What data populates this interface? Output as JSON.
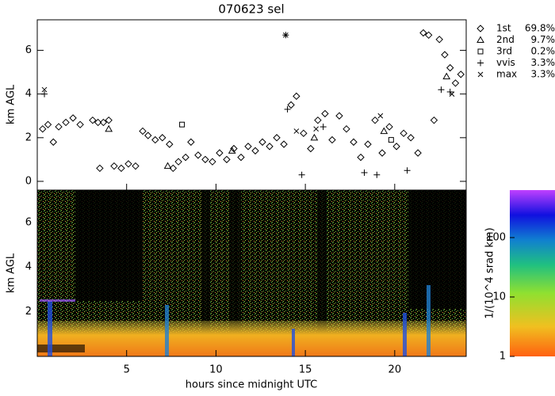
{
  "chart_data": [
    {
      "type": "scatter",
      "title": "070623 sel",
      "ylabel": "km AGL",
      "xlim": [
        0,
        24
      ],
      "xticks": [
        5,
        10,
        15,
        20
      ],
      "ylim": [
        -0.4,
        7.4
      ],
      "yticks": [
        0,
        2,
        4,
        6
      ],
      "series": [
        {
          "name": "1st",
          "label": "69.8%",
          "marker": "diamond",
          "color": "#000000",
          "x": [
            0.3,
            0.6,
            0.9,
            1.2,
            1.6,
            2.0,
            2.4,
            3.1,
            3.4,
            3.7,
            4.0,
            3.5,
            4.3,
            4.7,
            5.1,
            5.5,
            5.9,
            6.2,
            6.6,
            7.0,
            7.4,
            7.6,
            7.9,
            8.3,
            8.6,
            9.0,
            9.4,
            9.8,
            10.2,
            10.6,
            11.0,
            11.4,
            11.8,
            12.2,
            12.6,
            13.0,
            13.4,
            13.8,
            14.2,
            14.5,
            14.9,
            15.3,
            15.7,
            16.1,
            16.5,
            16.9,
            17.3,
            17.7,
            18.1,
            18.5,
            18.9,
            19.3,
            19.7,
            20.1,
            20.5,
            20.9,
            21.3,
            21.6,
            21.9,
            22.2,
            22.5,
            22.8,
            23.1,
            23.4,
            23.7
          ],
          "y": [
            2.4,
            2.6,
            1.8,
            2.5,
            2.7,
            2.9,
            2.6,
            2.8,
            2.7,
            2.7,
            2.8,
            0.6,
            0.7,
            0.6,
            0.8,
            0.7,
            2.3,
            2.1,
            1.9,
            2.0,
            1.7,
            0.6,
            0.9,
            1.1,
            1.8,
            1.2,
            1.0,
            0.9,
            1.3,
            1.0,
            1.5,
            1.1,
            1.6,
            1.4,
            1.8,
            1.6,
            2.0,
            1.7,
            3.5,
            3.9,
            2.2,
            1.5,
            2.8,
            3.1,
            1.9,
            3.0,
            2.4,
            1.8,
            1.1,
            1.7,
            2.8,
            1.3,
            2.5,
            1.6,
            2.2,
            2.0,
            1.3,
            6.8,
            6.7,
            2.8,
            6.5,
            5.8,
            5.2,
            4.5,
            4.9
          ]
        },
        {
          "name": "2nd",
          "label": "9.7%",
          "marker": "triangle",
          "color": "#000000",
          "x": [
            4.0,
            7.3,
            10.9,
            15.5,
            19.4,
            22.9
          ],
          "y": [
            2.4,
            0.7,
            1.4,
            2.0,
            2.3,
            4.8
          ]
        },
        {
          "name": "3rd",
          "label": "0.2%",
          "marker": "square",
          "color": "#000000",
          "x": [
            8.1,
            19.8
          ],
          "y": [
            2.6,
            1.9
          ]
        },
        {
          "name": "vvis",
          "label": "3.3%",
          "marker": "plus",
          "color": "#000000",
          "x": [
            0.4,
            13.9,
            14.0,
            14.8,
            16.0,
            18.3,
            19.0,
            20.7,
            22.6,
            23.1
          ],
          "y": [
            4.0,
            6.7,
            3.3,
            0.3,
            2.5,
            0.4,
            0.3,
            0.5,
            4.2,
            4.1
          ]
        },
        {
          "name": "max",
          "label": "3.3%",
          "marker": "cross",
          "color": "#000000",
          "x": [
            0.4,
            13.9,
            14.5,
            15.6,
            19.2,
            23.2
          ],
          "y": [
            4.2,
            6.7,
            2.3,
            2.4,
            3.0,
            4.0
          ]
        }
      ]
    },
    {
      "type": "heatmap",
      "ylabel": "km AGL",
      "xlabel": "hours since midnight UTC",
      "xlim": [
        0,
        24
      ],
      "xticks": [
        5,
        10,
        15,
        20
      ],
      "ylim": [
        0,
        7.45
      ],
      "yticks": [
        2,
        4,
        6
      ],
      "colorbar": {
        "label": "1/(10^4 srad km)",
        "lim": [
          1,
          630
        ],
        "log": true,
        "ticks": [
          1,
          10,
          100
        ]
      }
    }
  ]
}
